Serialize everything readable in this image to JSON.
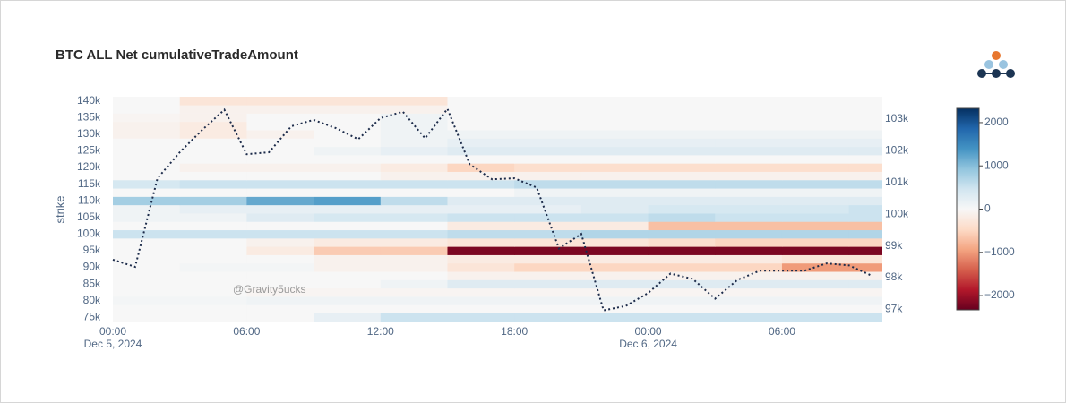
{
  "chart_data": {
    "type": "heatmap",
    "title": "BTC ALL Net cumulativeTradeAmount",
    "y_title": "strike",
    "annotation": "@Gravity5ucks",
    "heat_x": [
      "2024-12-05T01:30",
      "2024-12-05T04:30",
      "2024-12-05T07:30",
      "2024-12-05T10:30",
      "2024-12-05T13:30",
      "2024-12-05T16:30",
      "2024-12-05T19:30",
      "2024-12-05T22:30",
      "2024-12-06T01:30",
      "2024-12-06T04:30",
      "2024-12-06T07:30",
      "2024-12-06T10:30"
    ],
    "strikes": [
      75000,
      77500,
      80000,
      82500,
      85000,
      87500,
      90000,
      92500,
      95000,
      97500,
      100000,
      102500,
      105000,
      107500,
      110000,
      112500,
      115000,
      117500,
      120000,
      122500,
      125000,
      127500,
      130000,
      132500,
      135000,
      137500,
      140000
    ],
    "z": [
      [
        0,
        0,
        0,
        200,
        500,
        500,
        500,
        500,
        500,
        500,
        500,
        500
      ],
      [
        0,
        0,
        0,
        0,
        0,
        0,
        0,
        0,
        0,
        0,
        0,
        0
      ],
      [
        50,
        50,
        100,
        100,
        100,
        100,
        100,
        100,
        100,
        100,
        100,
        100
      ],
      [
        0,
        0,
        -50,
        -50,
        -50,
        -50,
        -50,
        -50,
        -50,
        -50,
        -50,
        -50
      ],
      [
        0,
        0,
        0,
        0,
        100,
        300,
        300,
        300,
        300,
        300,
        300,
        300
      ],
      [
        0,
        0,
        0,
        0,
        0,
        -100,
        -100,
        -100,
        -100,
        -100,
        -100,
        -100
      ],
      [
        0,
        50,
        50,
        -100,
        -100,
        -300,
        -500,
        -500,
        -500,
        -500,
        -1000,
        -1000
      ],
      [
        0,
        0,
        0,
        -100,
        -100,
        -200,
        -200,
        -200,
        -200,
        -200,
        -300,
        -300
      ],
      [
        0,
        0,
        -200,
        -600,
        -600,
        -2200,
        -2200,
        -2200,
        -2200,
        -2200,
        -2200,
        -2200
      ],
      [
        0,
        0,
        -100,
        -200,
        -200,
        -300,
        -300,
        -300,
        -400,
        -500,
        -500,
        -500
      ],
      [
        500,
        500,
        500,
        500,
        500,
        600,
        600,
        700,
        700,
        700,
        700,
        700
      ],
      [
        0,
        0,
        0,
        0,
        0,
        -200,
        -200,
        -200,
        -700,
        -700,
        -700,
        -700
      ],
      [
        100,
        100,
        300,
        400,
        400,
        500,
        500,
        500,
        600,
        500,
        500,
        500
      ],
      [
        100,
        200,
        200,
        200,
        200,
        200,
        200,
        300,
        400,
        400,
        400,
        500
      ],
      [
        800,
        800,
        1200,
        1300,
        600,
        300,
        300,
        300,
        300,
        300,
        300,
        300
      ],
      [
        0,
        0,
        0,
        0,
        0,
        0,
        100,
        100,
        100,
        100,
        100,
        100
      ],
      [
        400,
        500,
        500,
        500,
        500,
        500,
        600,
        600,
        600,
        600,
        600,
        600
      ],
      [
        0,
        0,
        0,
        0,
        -100,
        -100,
        -100,
        -100,
        -100,
        -100,
        -100,
        -100
      ],
      [
        0,
        -100,
        -100,
        -100,
        -200,
        -500,
        -400,
        -400,
        -400,
        -400,
        -400,
        -400
      ],
      [
        0,
        0,
        0,
        0,
        0,
        0,
        0,
        0,
        0,
        0,
        0,
        0
      ],
      [
        0,
        0,
        0,
        100,
        200,
        300,
        300,
        300,
        300,
        300,
        300,
        300
      ],
      [
        0,
        0,
        0,
        0,
        100,
        200,
        200,
        200,
        200,
        200,
        200,
        200
      ],
      [
        -100,
        -200,
        -100,
        0,
        100,
        100,
        100,
        100,
        100,
        100,
        100,
        100
      ],
      [
        -100,
        -200,
        0,
        0,
        100,
        0,
        0,
        0,
        0,
        0,
        0,
        0
      ],
      [
        -50,
        -100,
        0,
        0,
        100,
        0,
        0,
        0,
        0,
        0,
        0,
        0
      ],
      [
        0,
        -100,
        -100,
        -100,
        -100,
        0,
        0,
        0,
        0,
        0,
        0,
        0
      ],
      [
        0,
        -300,
        -300,
        -300,
        -300,
        0,
        0,
        0,
        0,
        0,
        0,
        0
      ]
    ],
    "colorscale": [
      "#67001f",
      "#b2182b",
      "#d6604d",
      "#f4a582",
      "#fddbc7",
      "#f7f7f7",
      "#d1e5f0",
      "#92c5de",
      "#4393c3",
      "#2166ac",
      "#053061"
    ],
    "zlim": [
      -2330,
      2330
    ],
    "colorbar_ticks": [
      {
        "value": -2000,
        "label": "−2000"
      },
      {
        "value": -1000,
        "label": "−1000"
      },
      0,
      1000,
      2000
    ],
    "x": [
      "2024-12-05T00:00",
      "2024-12-05T01:00",
      "2024-12-05T02:00",
      "2024-12-05T03:00",
      "2024-12-05T04:00",
      "2024-12-05T05:00",
      "2024-12-05T06:00",
      "2024-12-05T07:00",
      "2024-12-05T08:00",
      "2024-12-05T09:00",
      "2024-12-05T10:00",
      "2024-12-05T11:00",
      "2024-12-05T12:00",
      "2024-12-05T13:00",
      "2024-12-05T14:00",
      "2024-12-05T15:00",
      "2024-12-05T16:00",
      "2024-12-05T17:00",
      "2024-12-05T18:00",
      "2024-12-05T19:00",
      "2024-12-05T20:00",
      "2024-12-05T21:00",
      "2024-12-05T22:00",
      "2024-12-05T23:00",
      "2024-12-06T00:00",
      "2024-12-06T01:00",
      "2024-12-06T02:00",
      "2024-12-06T03:00",
      "2024-12-06T04:00",
      "2024-12-06T05:00",
      "2024-12-06T06:00",
      "2024-12-06T07:00",
      "2024-12-06T08:00",
      "2024-12-06T09:00",
      "2024-12-06T10:00"
    ],
    "line": {
      "axis": "y2",
      "color": "#1c2b4a",
      "dash": "dotted",
      "values": [
        98570,
        98340,
        101130,
        101950,
        102650,
        103290,
        101890,
        101950,
        102770,
        102970,
        102710,
        102360,
        103030,
        103230,
        102390,
        103320,
        101570,
        101100,
        101130,
        100840,
        98920,
        99380,
        96970,
        97110,
        97520,
        98130,
        97960,
        97340,
        97930,
        98220,
        98220,
        98220,
        98450,
        98390,
        98070
      ]
    },
    "xlim": [
      "2024-12-05T00:00",
      "2024-12-06T10:30"
    ],
    "xticks": [
      {
        "value": "2024-12-05T00:00",
        "label": "00:00",
        "date": "Dec 5, 2024"
      },
      {
        "value": "2024-12-05T06:00",
        "label": "06:00"
      },
      {
        "value": "2024-12-05T12:00",
        "label": "12:00"
      },
      {
        "value": "2024-12-05T18:00",
        "label": "18:00"
      },
      {
        "value": "2024-12-06T00:00",
        "label": "00:00",
        "date": "Dec 6, 2024"
      },
      {
        "value": "2024-12-06T06:00",
        "label": "06:00"
      }
    ],
    "ylim": [
      73750,
      141250
    ],
    "yticks": [
      {
        "value": 75000,
        "label": "75k"
      },
      {
        "value": 80000,
        "label": "80k"
      },
      {
        "value": 85000,
        "label": "85k"
      },
      {
        "value": 90000,
        "label": "90k"
      },
      {
        "value": 95000,
        "label": "95k"
      },
      {
        "value": 100000,
        "label": "100k"
      },
      {
        "value": 105000,
        "label": "105k"
      },
      {
        "value": 110000,
        "label": "110k"
      },
      {
        "value": 115000,
        "label": "115k"
      },
      {
        "value": 120000,
        "label": "120k"
      },
      {
        "value": 125000,
        "label": "125k"
      },
      {
        "value": 130000,
        "label": "130k"
      },
      {
        "value": 135000,
        "label": "135k"
      },
      {
        "value": 140000,
        "label": "140k"
      }
    ],
    "y2lim": [
      96620,
      103700
    ],
    "y2ticks": [
      {
        "value": 97000,
        "label": "97k"
      },
      {
        "value": 98000,
        "label": "98k"
      },
      {
        "value": 99000,
        "label": "99k"
      },
      {
        "value": 100000,
        "label": "100k"
      },
      {
        "value": 101000,
        "label": "101k"
      },
      {
        "value": 102000,
        "label": "102k"
      },
      {
        "value": 103000,
        "label": "103k"
      }
    ]
  }
}
